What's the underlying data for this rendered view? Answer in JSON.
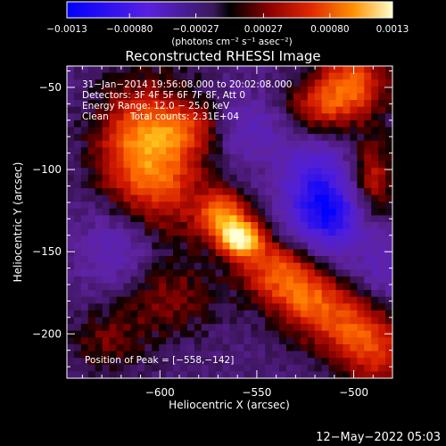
{
  "chart_data": {
    "type": "heatmap",
    "title": "Reconstructed RHESSI Image",
    "xlabel": "Heliocentric X (arcsec)",
    "ylabel": "Heliocentric Y (arcsec)",
    "xlim": [
      -648,
      -480
    ],
    "ylim": [
      -227,
      -37
    ],
    "x_ticks": [
      -600,
      -550,
      -500
    ],
    "y_ticks": [
      -50,
      -100,
      -150,
      -200
    ],
    "x_tick_labels": [
      "−600",
      "−550",
      "−500"
    ],
    "y_tick_labels": [
      "−50",
      "−100",
      "−150",
      "−200"
    ],
    "colorbar": {
      "range": [
        -0.0013,
        0.0013
      ],
      "ticks": [
        -0.0013,
        -0.0008,
        -0.00027,
        0.00027,
        0.0008,
        0.0013
      ],
      "tick_labels": [
        "−0.0013",
        "−0.00080",
        "−0.00027",
        "0.00027",
        "0.00080",
        "0.0013"
      ],
      "unit_label": "(photons cm⁻² s⁻¹ asec⁻²)"
    },
    "annotations": {
      "time_range": "31−Jan−2014 19:56:08.000 to 20:02:08.000",
      "detectors": "Detectors: 3F 4F 5F 6F 7F 8F, Att 0",
      "energy_range": "Energy Range: 12.0 − 25.0 keV",
      "clean": "Clean",
      "total_counts": "Total counts: 2.31E+04",
      "peak": "Position of Peak = [−558,−142]"
    },
    "peak_position": [
      -558,
      -142
    ],
    "features": [
      {
        "x": -558,
        "y": -142,
        "sx": 8,
        "sy": 8,
        "a": 0.0013
      },
      {
        "x": -568,
        "y": -128,
        "sx": 9,
        "sy": 10,
        "a": 0.00095
      },
      {
        "x": -598,
        "y": -98,
        "sx": 16,
        "sy": 30,
        "a": 0.00075
      },
      {
        "x": -615,
        "y": -85,
        "sx": 14,
        "sy": 25,
        "a": 0.0006
      },
      {
        "x": -540,
        "y": -160,
        "sx": 14,
        "sy": 12,
        "a": 0.00075
      },
      {
        "x": -525,
        "y": -178,
        "sx": 14,
        "sy": 12,
        "a": 0.0007
      },
      {
        "x": -505,
        "y": -195,
        "sx": 16,
        "sy": 14,
        "a": 0.00065
      },
      {
        "x": -488,
        "y": -212,
        "sx": 12,
        "sy": 14,
        "a": 0.0006
      },
      {
        "x": -500,
        "y": -48,
        "sx": 12,
        "sy": 14,
        "a": 0.00085
      },
      {
        "x": -518,
        "y": -62,
        "sx": 12,
        "sy": 12,
        "a": 0.0006
      },
      {
        "x": -490,
        "y": -105,
        "sx": 8,
        "sy": 16,
        "a": 0.00055
      },
      {
        "x": -598,
        "y": -178,
        "sx": 18,
        "sy": 16,
        "a": 0.0004
      },
      {
        "x": -628,
        "y": -205,
        "sx": 14,
        "sy": 14,
        "a": 0.0003
      },
      {
        "x": -585,
        "y": -75,
        "sx": 14,
        "sy": 10,
        "a": 0.0004
      },
      {
        "x": -520,
        "y": -115,
        "sx": 12,
        "sy": 22,
        "a": -0.0008
      },
      {
        "x": -508,
        "y": -130,
        "sx": 10,
        "sy": 14,
        "a": -0.00055
      },
      {
        "x": -555,
        "y": -75,
        "sx": 14,
        "sy": 14,
        "a": -0.00035
      },
      {
        "x": -620,
        "y": -150,
        "sx": 16,
        "sy": 20,
        "a": -0.00035
      },
      {
        "x": -485,
        "y": -160,
        "sx": 10,
        "sy": 16,
        "a": -0.0003
      }
    ]
  },
  "footer": {
    "date": "12−May−2022 05:03"
  }
}
